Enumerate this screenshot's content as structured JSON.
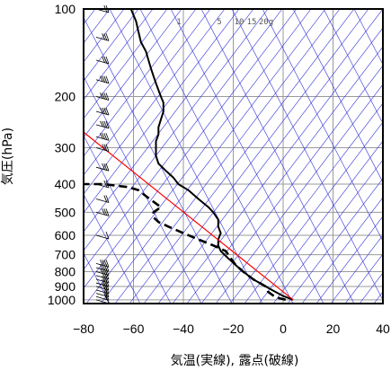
{
  "chart_data": {
    "type": "line",
    "title": "",
    "xlabel": "気温(実線), 露点(破線)",
    "ylabel": "気圧(hPa)",
    "xlim": [
      -80,
      40
    ],
    "ylim": [
      1030,
      100
    ],
    "y_scale": "log",
    "x_ticks": [
      -80,
      -60,
      -40,
      -20,
      0,
      20,
      40
    ],
    "x_tick_labels": [
      "−80",
      "−60",
      "−40",
      "−20",
      "0",
      "20",
      "40"
    ],
    "y_ticks": [
      1000,
      900,
      800,
      700,
      600,
      500,
      400,
      300,
      200,
      100
    ],
    "y_tick_labels": [
      "1000",
      "900",
      "800",
      "700",
      "600",
      "500",
      "400",
      "300",
      "200",
      "100"
    ],
    "mixing_ratio_labels": [
      "1",
      "5",
      "10",
      "15",
      "20g"
    ],
    "grid": true,
    "colors": {
      "temperature": "#000000",
      "dewpoint": "#000000",
      "parcel": "#ff0000",
      "guide_lines": "#3030d8",
      "grid": "#9a9a9a"
    },
    "series": [
      {
        "kind": "temperature",
        "style": "solid",
        "points": [
          [
            4,
            1000
          ],
          [
            0,
            970
          ],
          [
            -4,
            930
          ],
          [
            -7,
            900
          ],
          [
            -12,
            850
          ],
          [
            -16,
            800
          ],
          [
            -19,
            760
          ],
          [
            -22,
            720
          ],
          [
            -25,
            680
          ],
          [
            -26,
            650
          ],
          [
            -26,
            620
          ],
          [
            -25,
            590
          ],
          [
            -26,
            560
          ],
          [
            -26,
            530
          ],
          [
            -28,
            500
          ],
          [
            -30,
            480
          ],
          [
            -34,
            450
          ],
          [
            -38,
            420
          ],
          [
            -42,
            400
          ],
          [
            -44,
            380
          ],
          [
            -47,
            360
          ],
          [
            -50,
            340
          ],
          [
            -51,
            320
          ],
          [
            -51,
            300
          ],
          [
            -51,
            285
          ],
          [
            -50,
            270
          ],
          [
            -50,
            255
          ],
          [
            -49,
            240
          ],
          [
            -48,
            225
          ],
          [
            -48,
            210
          ],
          [
            -49,
            200
          ],
          [
            -50,
            190
          ],
          [
            -51,
            180
          ],
          [
            -52,
            170
          ],
          [
            -53,
            160
          ],
          [
            -54,
            150
          ],
          [
            -55,
            140
          ],
          [
            -57,
            130
          ],
          [
            -58,
            120
          ],
          [
            -59,
            110
          ],
          [
            -60,
            105
          ],
          [
            -61,
            100
          ]
        ]
      },
      {
        "kind": "dewpoint",
        "style": "dashed",
        "points": [
          [
            1,
            1000
          ],
          [
            -3,
            980
          ],
          [
            -6,
            940
          ],
          [
            -7,
            900
          ],
          [
            -12,
            850
          ],
          [
            -16,
            800
          ],
          [
            -19,
            760
          ],
          [
            -21,
            720
          ],
          [
            -23,
            680
          ],
          [
            -28,
            650
          ],
          [
            -34,
            620
          ],
          [
            -40,
            590
          ],
          [
            -46,
            560
          ],
          [
            -50,
            540
          ],
          [
            -52,
            520
          ],
          [
            -52,
            500
          ],
          [
            -49,
            480
          ],
          [
            -52,
            460
          ],
          [
            -55,
            440
          ],
          [
            -58,
            420
          ],
          [
            -62,
            410
          ],
          [
            -72,
            400
          ],
          [
            -80,
            400
          ]
        ]
      },
      {
        "kind": "parcel",
        "style": "solid",
        "points": [
          [
            4,
            1000
          ],
          [
            -84,
            249
          ]
        ]
      }
    ],
    "wind_barbs": [
      {
        "pressure": 1000,
        "speed_kt": 10
      },
      {
        "pressure": 975,
        "speed_kt": 15
      },
      {
        "pressure": 950,
        "speed_kt": 15
      },
      {
        "pressure": 925,
        "speed_kt": 20
      },
      {
        "pressure": 900,
        "speed_kt": 25
      },
      {
        "pressure": 875,
        "speed_kt": 25
      },
      {
        "pressure": 850,
        "speed_kt": 30
      },
      {
        "pressure": 825,
        "speed_kt": 30
      },
      {
        "pressure": 800,
        "speed_kt": 35
      },
      {
        "pressure": 775,
        "speed_kt": 35
      },
      {
        "pressure": 750,
        "speed_kt": 40
      },
      {
        "pressure": 600,
        "speed_kt": 10
      },
      {
        "pressure": 500,
        "speed_kt": 25
      },
      {
        "pressure": 450,
        "speed_kt": 15
      },
      {
        "pressure": 400,
        "speed_kt": 20
      },
      {
        "pressure": 350,
        "speed_kt": 25
      },
      {
        "pressure": 300,
        "speed_kt": 30
      },
      {
        "pressure": 275,
        "speed_kt": 35
      },
      {
        "pressure": 250,
        "speed_kt": 35
      },
      {
        "pressure": 225,
        "speed_kt": 40
      },
      {
        "pressure": 200,
        "speed_kt": 40
      },
      {
        "pressure": 175,
        "speed_kt": 35
      },
      {
        "pressure": 150,
        "speed_kt": 30
      },
      {
        "pressure": 125,
        "speed_kt": 25
      },
      {
        "pressure": 100,
        "speed_kt": 20
      }
    ]
  }
}
